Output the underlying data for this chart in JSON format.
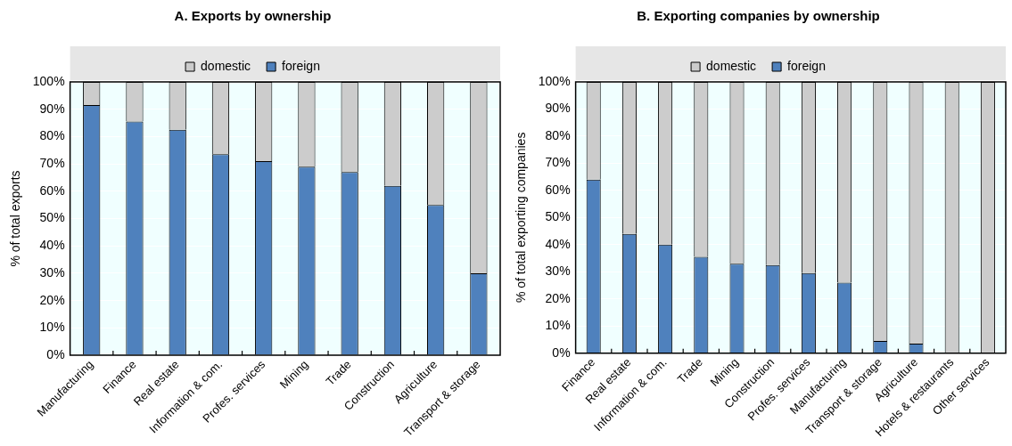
{
  "chart_data": [
    {
      "type": "bar",
      "title": "A. Exports by ownership",
      "ylabel": "% of total exports",
      "categories": [
        "Manufacturing",
        "Finance",
        "Real estate",
        "Information & com.",
        "Profes. services",
        "Mining",
        "Trade",
        "Construction",
        "Agriculture",
        "Transport & storage"
      ],
      "series": [
        {
          "name": "foreign",
          "color": "#4f81bd",
          "values": [
            91.5,
            85.5,
            82.5,
            73.5,
            71,
            69,
            67,
            62,
            55,
            30
          ]
        },
        {
          "name": "domestic",
          "color": "#cccccc",
          "values": [
            8.5,
            14.5,
            17.5,
            26.5,
            29,
            31,
            33,
            38,
            45,
            70
          ]
        }
      ],
      "stacked": true,
      "ylim": [
        0,
        100
      ],
      "yticks": [
        {
          "value": 0,
          "label": "0%"
        },
        {
          "value": 10,
          "label": "10%"
        },
        {
          "value": 20,
          "label": "20%"
        },
        {
          "value": 30,
          "label": "30%"
        },
        {
          "value": 40,
          "label": "40%"
        },
        {
          "value": 50,
          "label": "50%"
        },
        {
          "value": 60,
          "label": "60%"
        },
        {
          "value": 70,
          "label": "70%"
        },
        {
          "value": 80,
          "label": "80%"
        },
        {
          "value": 90,
          "label": "90%"
        },
        {
          "value": 100,
          "label": "100%"
        }
      ],
      "grid": true,
      "legend": "top"
    },
    {
      "type": "bar",
      "title": "B. Exporting companies by ownership",
      "ylabel": "% of total exporting companies",
      "categories": [
        "Finance",
        "Real estate",
        "Information & com.",
        "Trade",
        "Mining",
        "Construction",
        "Profes. services",
        "Manufacturing",
        "Transport & storage",
        "Agriculture",
        "Hotels & restaurants",
        "Other services"
      ],
      "series": [
        {
          "name": "foreign",
          "color": "#4f81bd",
          "values": [
            64,
            44,
            40,
            35.5,
            33,
            32.5,
            29.5,
            26,
            4.5,
            3.5,
            0,
            0
          ]
        },
        {
          "name": "domestic",
          "color": "#cccccc",
          "values": [
            36,
            56,
            60,
            64.5,
            67,
            67.5,
            70.5,
            74,
            95.5,
            96.5,
            100,
            100
          ]
        }
      ],
      "stacked": true,
      "ylim": [
        0,
        100
      ],
      "yticks": [
        {
          "value": 0,
          "label": "0%"
        },
        {
          "value": 10,
          "label": "10%"
        },
        {
          "value": 20,
          "label": "20%"
        },
        {
          "value": 30,
          "label": "30%"
        },
        {
          "value": 40,
          "label": "40%"
        },
        {
          "value": 50,
          "label": "50%"
        },
        {
          "value": 60,
          "label": "60%"
        },
        {
          "value": 70,
          "label": "70%"
        },
        {
          "value": 80,
          "label": "80%"
        },
        {
          "value": 90,
          "label": "90%"
        },
        {
          "value": 100,
          "label": "100%"
        }
      ],
      "grid": true,
      "legend": "top"
    }
  ]
}
